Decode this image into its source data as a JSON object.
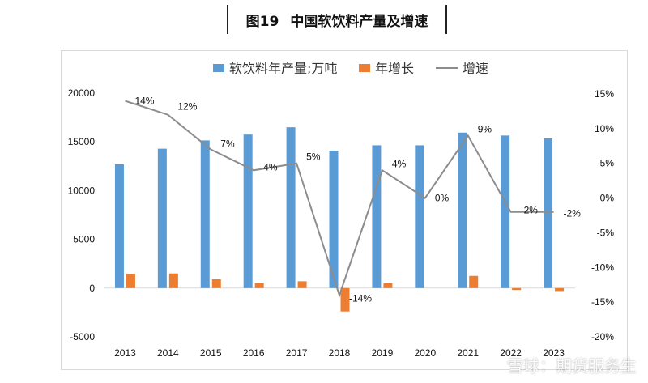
{
  "header": {
    "fig_num": "图19",
    "title": "中国软饮料产量及增速"
  },
  "watermark": "雪球：期货服务生",
  "colors": {
    "bar": "#5B9BD5",
    "growth_bar": "#ED7D31",
    "line": "#8C8C8C",
    "frame": "#D9D9D9"
  },
  "chart_data": {
    "type": "bar",
    "categories": [
      "2013",
      "2014",
      "2015",
      "2016",
      "2017",
      "2018",
      "2019",
      "2020",
      "2021",
      "2022",
      "2023"
    ],
    "series": [
      {
        "name": "软饮料年产量;万吨",
        "axis": "left",
        "type": "bar",
        "values": [
          12700,
          14300,
          15150,
          15750,
          16500,
          14100,
          14650,
          14650,
          15950,
          15650,
          15350
        ]
      },
      {
        "name": "年增长",
        "axis": "left",
        "type": "bar",
        "values": [
          1450,
          1500,
          900,
          500,
          700,
          -2400,
          500,
          0,
          1250,
          -200,
          -300
        ]
      },
      {
        "name": "增速",
        "axis": "right",
        "type": "line",
        "values": [
          14,
          12,
          7,
          4,
          5,
          -14,
          4,
          0,
          9,
          -2,
          -2
        ],
        "labels": [
          "14%",
          "12%",
          "7%",
          "4%",
          "5%",
          "-14%",
          "4%",
          "0%",
          "9%",
          "-2%",
          "-2%"
        ]
      }
    ],
    "y_left": {
      "ylim": [
        -5000,
        20000
      ],
      "ticks": [
        "-5000",
        "0",
        "5000",
        "10000",
        "15000",
        "20000"
      ]
    },
    "y_right": {
      "ylim": [
        -20,
        15
      ],
      "ticks": [
        "-20%",
        "-15%",
        "-10%",
        "-5%",
        "0%",
        "5%",
        "10%",
        "15%"
      ]
    },
    "legend_position": "top"
  }
}
